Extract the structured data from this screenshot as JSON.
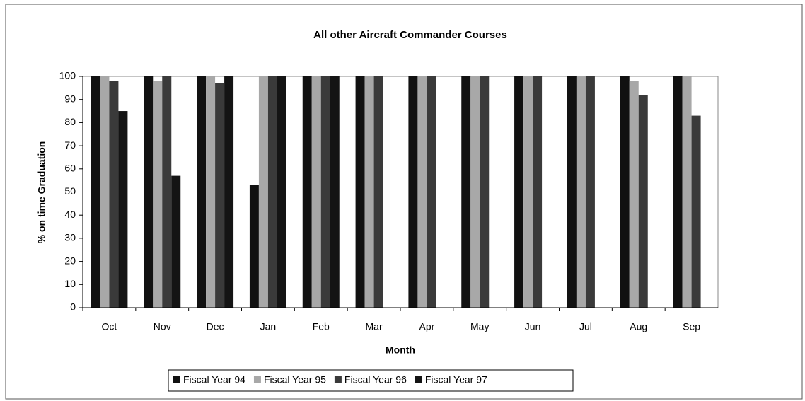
{
  "chart_data": {
    "type": "bar",
    "title": "All other Aircraft Commander Courses",
    "x_label": "Month",
    "y_label": "% on time Graduation",
    "categories": [
      "Oct",
      "Nov",
      "Dec",
      "Jan",
      "Feb",
      "Mar",
      "Apr",
      "May",
      "Jun",
      "Jul",
      "Aug",
      "Sep"
    ],
    "series": [
      {
        "name": "Fiscal Year 94",
        "color": "#111111",
        "values": [
          100,
          100,
          100,
          53,
          100,
          100,
          100,
          100,
          100,
          100,
          100,
          100
        ]
      },
      {
        "name": "Fiscal Year 95",
        "color": "#a8a8a8",
        "values": [
          100,
          98,
          100,
          100,
          100,
          100,
          100,
          100,
          100,
          100,
          98,
          100
        ]
      },
      {
        "name": "Fiscal Year 96",
        "color": "#3a3a3a",
        "values": [
          98,
          100,
          97,
          100,
          100,
          100,
          100,
          100,
          100,
          100,
          92,
          83
        ]
      },
      {
        "name": "Fiscal Year 97",
        "color": "#141414",
        "values": [
          85,
          57,
          100,
          100,
          100,
          null,
          null,
          null,
          null,
          null,
          null,
          null
        ]
      }
    ],
    "ylim": [
      0,
      100
    ],
    "yticks": [
      0,
      10,
      20,
      30,
      40,
      50,
      60,
      70,
      80,
      90,
      100
    ],
    "legend": "bottom"
  }
}
